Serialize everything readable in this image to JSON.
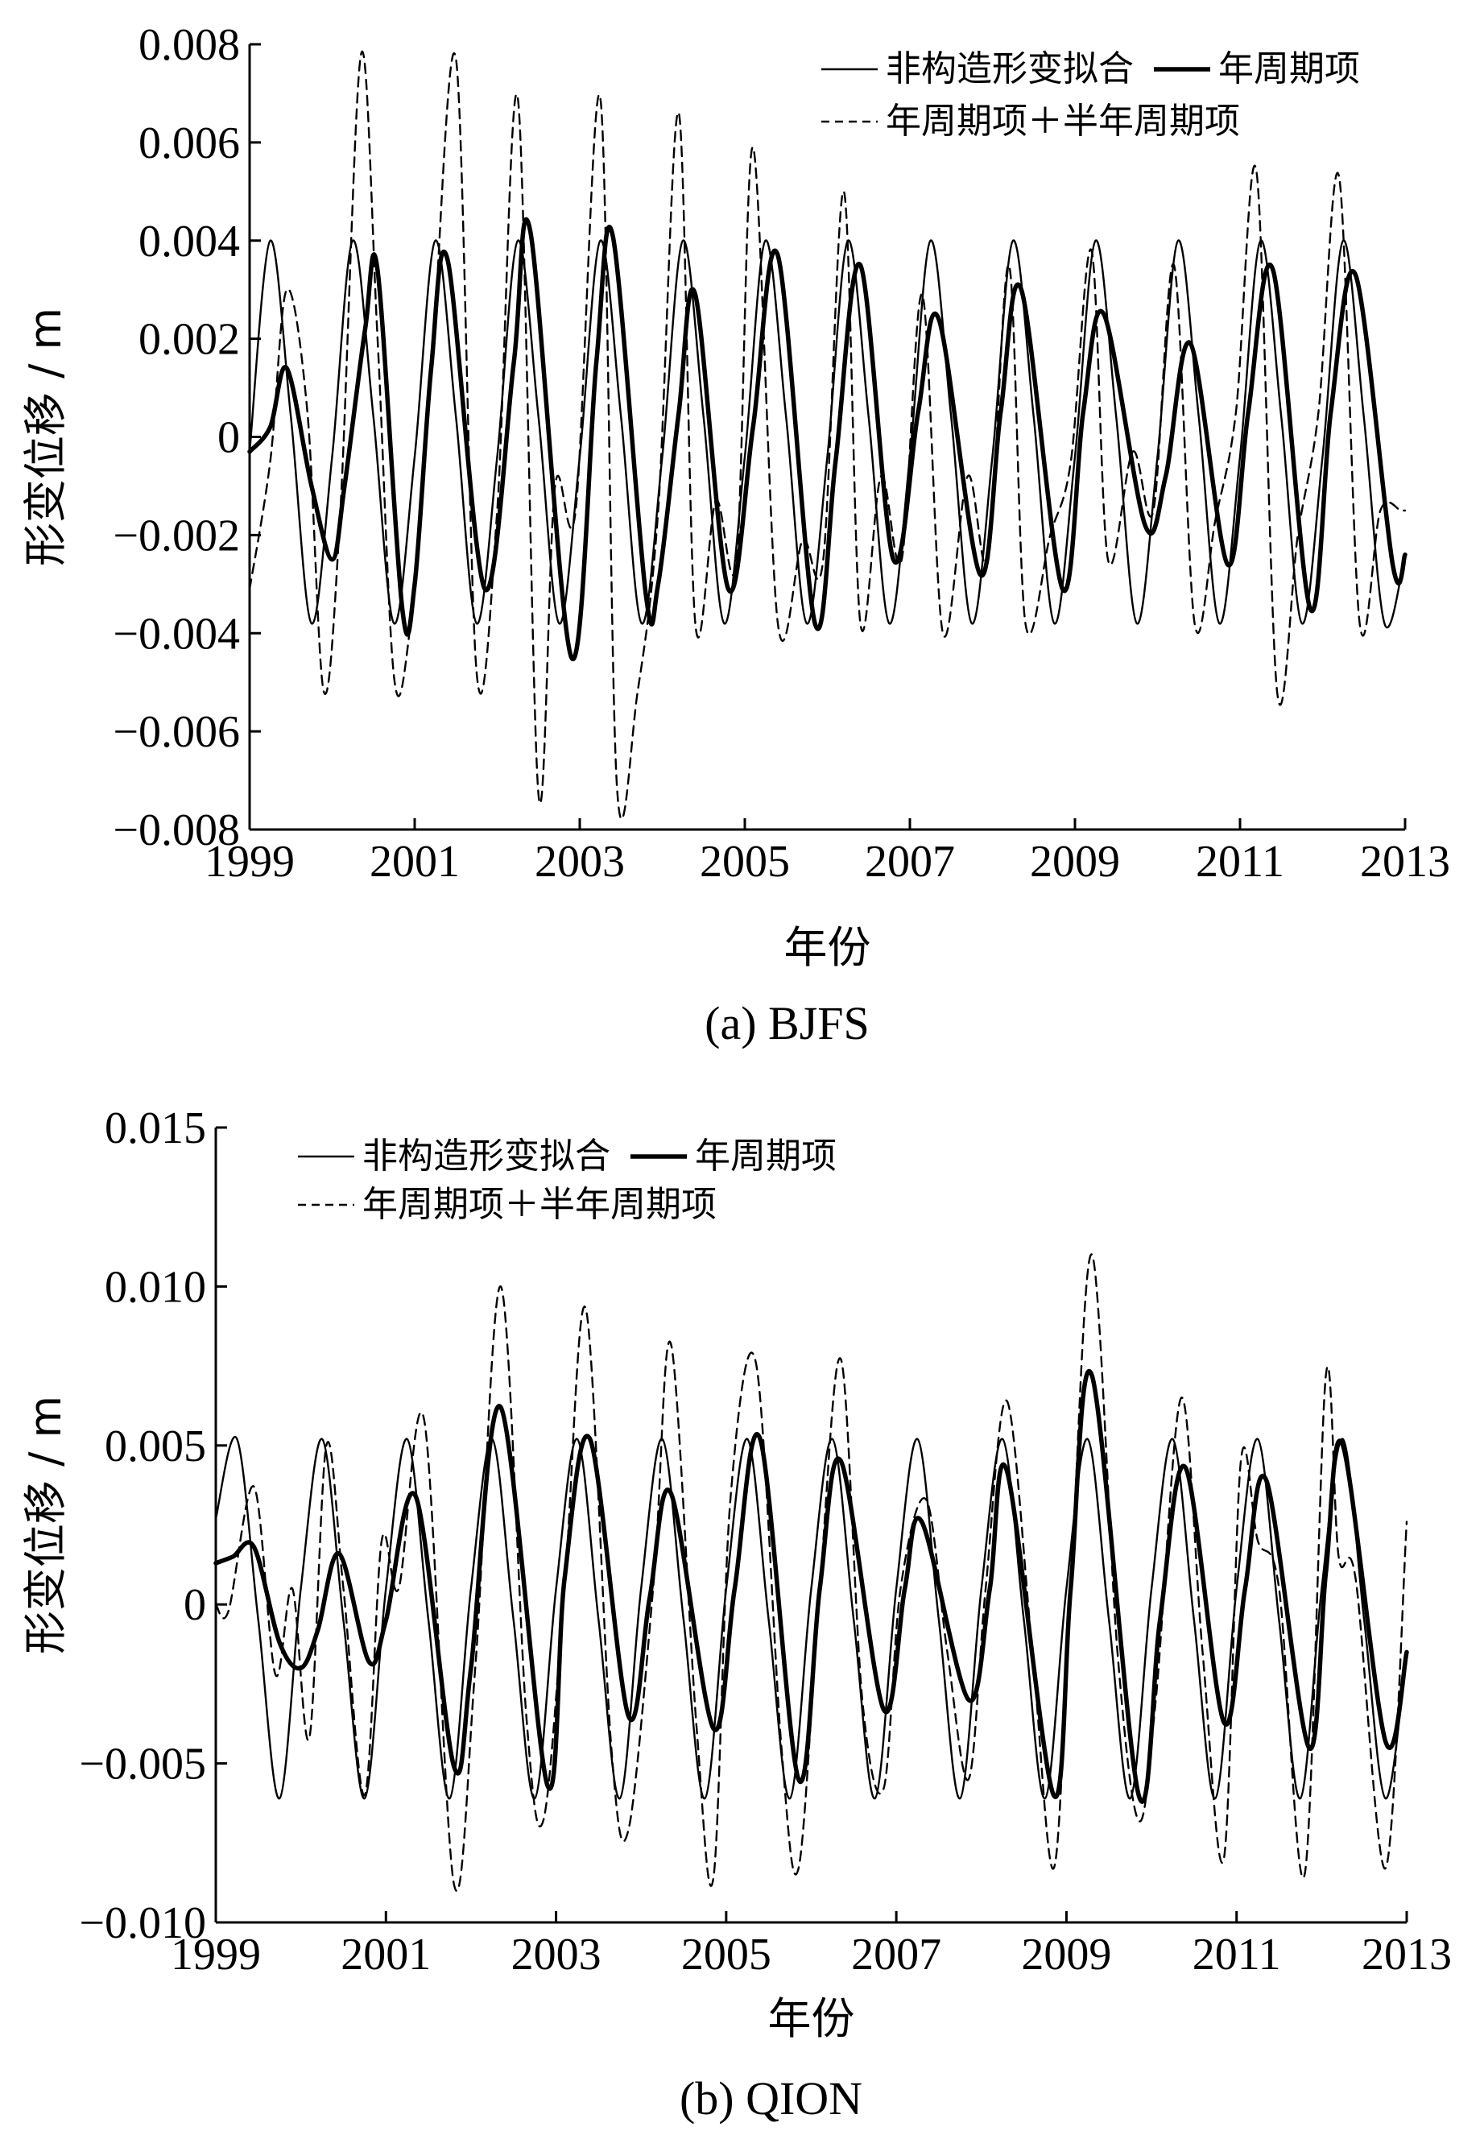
{
  "chart_data": [
    {
      "type": "line",
      "caption": "(a) BJFS",
      "xlabel": "年份",
      "ylabel": "形变位移 / m",
      "xlim": [
        1999,
        2013
      ],
      "ylim": [
        -0.008,
        0.008
      ],
      "x_ticks": [
        1999,
        2001,
        2003,
        2005,
        2007,
        2009,
        2011,
        2013
      ],
      "x_tick_labels": [
        "1999",
        "2001",
        "2003",
        "2005",
        "2007",
        "2009",
        "2011",
        "2013"
      ],
      "y_ticks": [
        -0.008,
        -0.006,
        -0.004,
        -0.002,
        0,
        0.002,
        0.004,
        0.006,
        0.008
      ],
      "y_tick_labels": [
        "−0.008",
        "−0.006",
        "−0.004",
        "−0.002",
        "0",
        "0.002",
        "0.004",
        "0.006",
        "0.008"
      ],
      "legend": [
        "非构造形变拟合",
        "年周期项",
        "年周期项＋半年周期项"
      ],
      "legend_position": "top-right",
      "grid": false,
      "series": [
        {
          "name": "非构造形变拟合",
          "style": "thin-solid",
          "x": [
            1999.0,
            1999.25,
            1999.5,
            1999.75,
            2000.0,
            2000.25,
            2000.5,
            2000.75,
            2001.0,
            2001.25,
            2001.5,
            2001.75,
            2002.0,
            2002.25,
            2002.5,
            2002.75,
            2003.0,
            2003.25,
            2003.5,
            2003.75,
            2004.0,
            2004.25,
            2004.5,
            2004.75,
            2005.0,
            2005.25,
            2005.5,
            2005.75,
            2006.0,
            2006.25,
            2006.5,
            2006.75,
            2007.0,
            2007.25,
            2007.5,
            2007.75,
            2008.0,
            2008.25,
            2008.5,
            2008.75,
            2009.0,
            2009.25,
            2009.5,
            2009.75,
            2010.0,
            2010.25,
            2010.5,
            2010.75,
            2011.0,
            2011.25,
            2011.5,
            2011.75,
            2012.0,
            2012.25,
            2012.5,
            2012.75,
            2013.0
          ],
          "values": [
            -0.0003,
            0.004,
            0.0004,
            -0.0038,
            -0.0004,
            0.004,
            0.0004,
            -0.0038,
            -0.0004,
            0.004,
            0.0004,
            -0.0038,
            -0.0004,
            0.004,
            0.0004,
            -0.0038,
            -0.0004,
            0.004,
            0.0004,
            -0.0038,
            -0.0004,
            0.004,
            0.0004,
            -0.0038,
            -0.0004,
            0.004,
            0.0004,
            -0.0038,
            -0.0004,
            0.004,
            0.0004,
            -0.0038,
            -0.0004,
            0.004,
            0.0004,
            -0.0038,
            -0.0004,
            0.004,
            0.0004,
            -0.0038,
            -0.0004,
            0.004,
            0.0004,
            -0.0038,
            -0.0004,
            0.004,
            0.0004,
            -0.0038,
            -0.0004,
            0.004,
            0.0004,
            -0.0038,
            -0.0004,
            0.004,
            0.0004,
            -0.0038,
            -0.0024
          ]
        },
        {
          "name": "年周期项",
          "style": "thick-solid",
          "x": [
            1999.0,
            1999.25,
            1999.45,
            1999.75,
            2000.0,
            2000.15,
            2000.4,
            2000.55,
            2000.85,
            2001.0,
            2001.2,
            2001.4,
            2001.85,
            2002.2,
            2002.4,
            2002.9,
            2003.2,
            2003.4,
            2003.8,
            2003.95,
            2004.2,
            2004.4,
            2004.8,
            2005.1,
            2005.4,
            2005.85,
            2006.1,
            2006.4,
            2006.8,
            2007.1,
            2007.35,
            2007.85,
            2008.1,
            2008.35,
            2008.85,
            2009.1,
            2009.35,
            2009.85,
            2010.1,
            2010.4,
            2010.85,
            2011.1,
            2011.4,
            2011.85,
            2012.1,
            2012.4,
            2012.85,
            2013.0
          ],
          "values": [
            -0.0003,
            0.0002,
            0.0014,
            -0.001,
            -0.0025,
            -0.001,
            0.0022,
            0.0034,
            -0.0035,
            -0.003,
            0.0014,
            0.0036,
            -0.0031,
            0.0015,
            0.0042,
            -0.0045,
            0.0015,
            0.0041,
            -0.0032,
            -0.003,
            0.0005,
            0.0029,
            -0.0031,
            0.0002,
            0.0037,
            -0.0038,
            -0.0005,
            0.0035,
            -0.0025,
            0.0005,
            0.0024,
            -0.0028,
            0.0005,
            0.003,
            -0.0031,
            0.0005,
            0.0025,
            -0.0018,
            -0.0008,
            0.0019,
            -0.0026,
            0.0005,
            0.0034,
            -0.0035,
            0.0005,
            0.0033,
            -0.0026,
            -0.0024
          ]
        },
        {
          "name": "年周期项＋半年周期项",
          "style": "dashed",
          "x": [
            1999.0,
            1999.25,
            1999.45,
            1999.7,
            1999.9,
            2000.1,
            2000.35,
            2000.55,
            2000.75,
            2000.95,
            2001.2,
            2001.5,
            2001.75,
            2002.0,
            2002.25,
            2002.5,
            2002.7,
            2002.95,
            2003.25,
            2003.45,
            2003.7,
            2003.95,
            2004.2,
            2004.4,
            2004.65,
            2004.9,
            2005.1,
            2005.4,
            2005.7,
            2005.95,
            2006.2,
            2006.4,
            2006.65,
            2006.9,
            2007.15,
            2007.4,
            2007.7,
            2007.95,
            2008.2,
            2008.4,
            2008.7,
            2008.95,
            2009.2,
            2009.4,
            2009.7,
            2009.95,
            2010.2,
            2010.45,
            2010.7,
            2010.95,
            2011.2,
            2011.45,
            2011.7,
            2011.95,
            2012.2,
            2012.45,
            2012.7,
            2012.95,
            2013.0
          ],
          "values": [
            -0.0031,
            -0.0005,
            0.003,
            0.0005,
            -0.0052,
            -0.0015,
            0.0078,
            0.002,
            -0.0049,
            -0.0038,
            0.0012,
            0.0077,
            -0.0048,
            -0.0015,
            0.0069,
            -0.0073,
            -0.001,
            -0.0015,
            0.0069,
            -0.0071,
            -0.0052,
            -0.0015,
            0.0066,
            -0.0038,
            -0.0013,
            -0.0025,
            0.0059,
            -0.0038,
            -0.0021,
            -0.0025,
            0.005,
            -0.0038,
            -0.0008,
            -0.0025,
            0.0029,
            -0.004,
            -0.0008,
            -0.0025,
            0.0035,
            -0.0038,
            -0.002,
            -0.0005,
            0.0038,
            -0.0025,
            -0.0003,
            -0.0015,
            0.0035,
            -0.0038,
            -0.0017,
            0.0005,
            0.0054,
            -0.0052,
            -0.002,
            0.0005,
            0.0053,
            -0.0038,
            -0.0015,
            -0.0015,
            -0.0015
          ]
        }
      ]
    },
    {
      "type": "line",
      "caption": "(b) QION",
      "xlabel": "年份",
      "ylabel": "形变位移 / m",
      "xlim": [
        1999,
        2013
      ],
      "ylim": [
        -0.01,
        0.015
      ],
      "x_ticks": [
        1999,
        2001,
        2003,
        2005,
        2007,
        2009,
        2011,
        2013
      ],
      "x_tick_labels": [
        "1999",
        "2001",
        "2003",
        "2005",
        "2007",
        "2009",
        "2011",
        "2013"
      ],
      "y_ticks": [
        -0.01,
        -0.005,
        0,
        0.005,
        0.01,
        0.015
      ],
      "y_tick_labels": [
        "−0.010",
        "−0.005",
        "0",
        "0.005",
        "0.010",
        "0.015"
      ],
      "legend": [
        "非构造形变拟合",
        "年周期项",
        "年周期项＋半年周期项"
      ],
      "legend_position": "top-left",
      "grid": false,
      "series": [
        {
          "name": "非构造形变拟合",
          "style": "thin-solid",
          "x": [
            1999.0,
            1999.25,
            1999.5,
            1999.75,
            2000.0,
            2000.25,
            2000.5,
            2000.75,
            2001.0,
            2001.25,
            2001.5,
            2001.75,
            2002.0,
            2002.25,
            2002.5,
            2002.75,
            2003.0,
            2003.25,
            2003.5,
            2003.75,
            2004.0,
            2004.25,
            2004.5,
            2004.75,
            2005.0,
            2005.25,
            2005.5,
            2005.75,
            2006.0,
            2006.25,
            2006.5,
            2006.75,
            2007.0,
            2007.25,
            2007.5,
            2007.75,
            2008.0,
            2008.25,
            2008.5,
            2008.75,
            2009.0,
            2009.25,
            2009.5,
            2009.75,
            2010.0,
            2010.25,
            2010.5,
            2010.75,
            2011.0,
            2011.25,
            2011.5,
            2011.75,
            2012.0,
            2012.25,
            2012.5,
            2012.75,
            2013.0
          ],
          "values": [
            0.0027,
            0.0052,
            -0.0005,
            -0.0061,
            0.0005,
            0.0052,
            -0.0005,
            -0.0061,
            0.0005,
            0.0052,
            -0.0005,
            -0.0061,
            0.0005,
            0.0052,
            -0.0005,
            -0.0061,
            0.0005,
            0.0052,
            -0.0005,
            -0.0061,
            0.0005,
            0.0052,
            -0.0005,
            -0.0061,
            0.0005,
            0.0052,
            -0.0005,
            -0.0061,
            0.0005,
            0.0052,
            -0.0005,
            -0.0061,
            0.0005,
            0.0052,
            -0.0005,
            -0.0061,
            0.0005,
            0.0052,
            -0.0005,
            -0.0061,
            0.0005,
            0.0052,
            -0.0005,
            -0.0061,
            0.0005,
            0.0052,
            -0.0005,
            -0.0061,
            0.0005,
            0.0052,
            -0.0005,
            -0.0061,
            0.0005,
            0.0052,
            -0.0005,
            -0.0061,
            -0.0015
          ]
        },
        {
          "name": "年周期项",
          "style": "thick-solid",
          "x": [
            1999.0,
            1999.2,
            1999.45,
            1999.75,
            2000.0,
            2000.2,
            2000.45,
            2000.8,
            2001.0,
            2001.35,
            2001.8,
            2002.0,
            2002.35,
            2002.9,
            2003.1,
            2003.4,
            2003.85,
            2004.1,
            2004.35,
            2004.85,
            2005.1,
            2005.4,
            2005.85,
            2006.1,
            2006.35,
            2006.85,
            2007.1,
            2007.3,
            2007.85,
            2008.1,
            2008.3,
            2008.85,
            2009.05,
            2009.3,
            2009.85,
            2010.1,
            2010.4,
            2010.85,
            2011.1,
            2011.35,
            2011.85,
            2012.05,
            2012.25,
            2012.75,
            2013.0
          ],
          "values": [
            0.0013,
            0.0015,
            0.0018,
            -0.0012,
            -0.002,
            -0.0008,
            0.0016,
            -0.0018,
            -0.0005,
            0.0034,
            -0.0051,
            -0.002,
            0.0062,
            -0.0057,
            0.0008,
            0.0052,
            -0.0035,
            0.0002,
            0.0035,
            -0.0039,
            0.0005,
            0.0052,
            -0.0055,
            0.0005,
            0.0045,
            -0.0033,
            0.0005,
            0.0026,
            -0.003,
            0.0005,
            0.0042,
            -0.006,
            0.0005,
            0.0072,
            -0.006,
            -0.0005,
            0.0043,
            -0.0037,
            0.0005,
            0.0039,
            -0.0045,
            0.001,
            0.005,
            -0.0043,
            -0.0015
          ]
        },
        {
          "name": "年周期项＋半年周期项",
          "style": "dashed",
          "x": [
            1999.0,
            1999.15,
            1999.45,
            1999.7,
            1999.9,
            2000.1,
            2000.3,
            2000.5,
            2000.75,
            2000.95,
            2001.15,
            2001.45,
            2001.8,
            2002.05,
            2002.35,
            2002.65,
            2002.85,
            2003.1,
            2003.35,
            2003.65,
            2003.85,
            2004.15,
            2004.35,
            2004.65,
            2004.85,
            2005.05,
            2005.35,
            2005.65,
            2005.85,
            2006.1,
            2006.35,
            2006.6,
            2006.85,
            2007.05,
            2007.35,
            2007.6,
            2007.85,
            2008.05,
            2008.3,
            2008.6,
            2008.85,
            2009.05,
            2009.3,
            2009.6,
            2009.85,
            2010.05,
            2010.35,
            2010.6,
            2010.85,
            2011.05,
            2011.25,
            2011.5,
            2011.8,
            2012.05,
            2012.2,
            2012.4,
            2012.75,
            2013.0
          ],
          "values": [
            0.0,
            -0.0002,
            0.0037,
            -0.0022,
            0.0005,
            -0.0042,
            0.005,
            0.0005,
            -0.006,
            0.002,
            0.0005,
            0.0058,
            -0.0088,
            -0.002,
            0.01,
            -0.0035,
            -0.0068,
            0.0005,
            0.0093,
            -0.0045,
            -0.0071,
            0.0008,
            0.0082,
            -0.0038,
            -0.0086,
            0.0033,
            0.0076,
            -0.0045,
            -0.0083,
            0.0005,
            0.0077,
            -0.003,
            -0.0058,
            0.0005,
            0.0033,
            -0.0015,
            -0.0055,
            0.0005,
            0.0064,
            -0.0015,
            -0.0083,
            0.0005,
            0.011,
            -0.0015,
            -0.0068,
            -0.003,
            0.0065,
            -0.0015,
            -0.008,
            0.0045,
            0.002,
            0.0005,
            -0.0085,
            0.0072,
            0.0015,
            0.0008,
            -0.0083,
            0.0026
          ]
        }
      ]
    }
  ]
}
